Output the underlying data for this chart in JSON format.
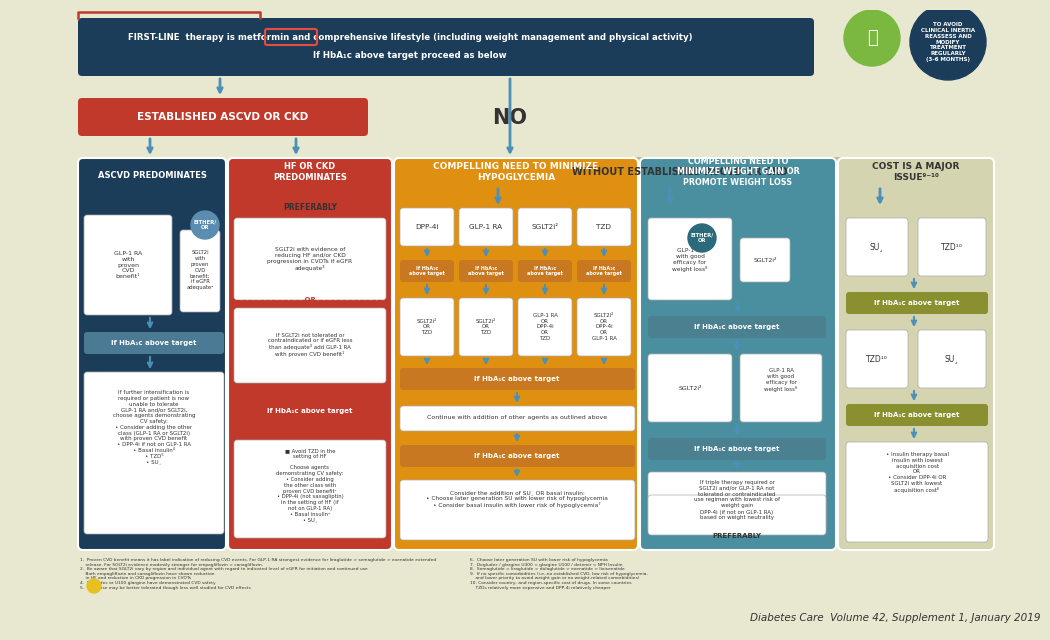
{
  "bg_color": "#e8e8d0",
  "title_bg": "#1c3d5a",
  "title_text_line1": "FIRST-LINE  therapy is metformin and comprehensive lifestyle (including weight management and physical activity)",
  "title_text_line2": "If HbA₁c above target proceed as below",
  "metformin_word": "metformin",
  "red_box_text": "ESTABLISHED ASCVD OR CKD",
  "red_box_color": "#c0392b",
  "no_text": "NO",
  "without_box_text": "WITHOUT ESTABLISHED ASCVD OR CKD",
  "without_box_bg": "#c8c8a0",
  "panel1_bg": "#1c3d5a",
  "panel2_bg": "#c0392b",
  "panel3_bg": "#e09010",
  "panel4_bg": "#4a8fa0",
  "panel5_bg": "#d4d4b0",
  "arrow_blue": "#4a90b8",
  "arrow_red": "#c0392b",
  "hba1c_bar_blue": "#4a7a94",
  "hba1c_bar_orange": "#c87820",
  "hba1c_bar_teal": "#4a8090",
  "hba1c_bar_olive": "#8a9030",
  "white_box_edge": "#aaaaaa",
  "inertia_circle_bg": "#1c3d5a",
  "person_circle_bg": "#7ab840",
  "citation": "Diabetes Care  Volume 42, Supplement 1, January 2019"
}
